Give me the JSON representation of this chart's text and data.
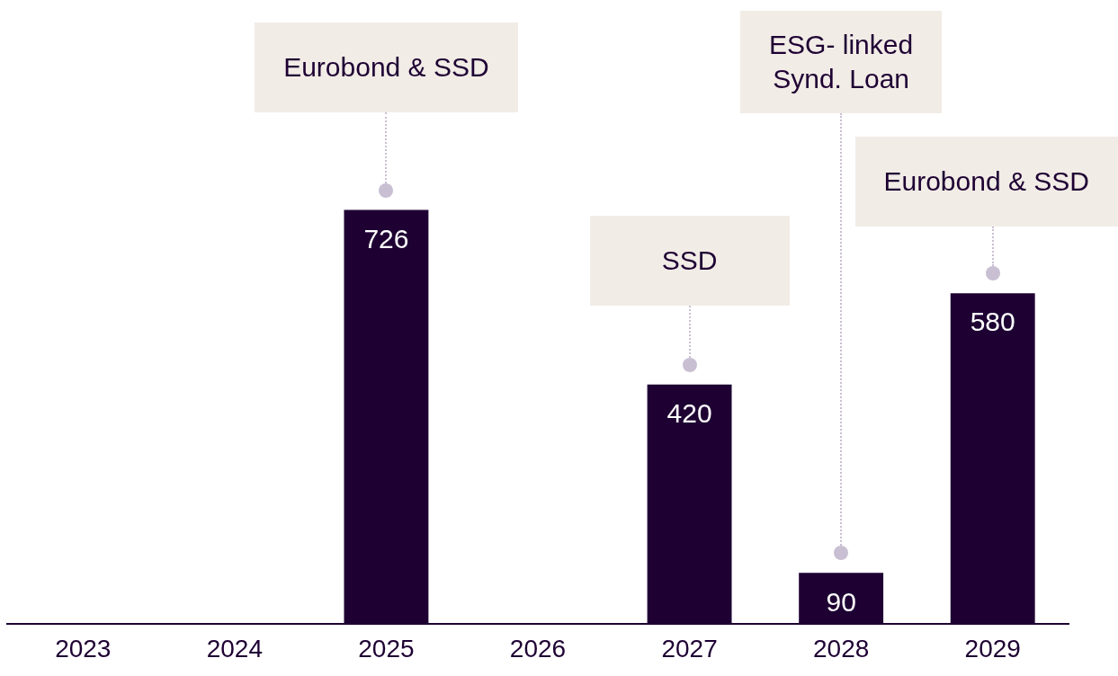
{
  "chart_data": {
    "type": "bar",
    "categories": [
      "2023",
      "2024",
      "2025",
      "2026",
      "2027",
      "2028",
      "2029"
    ],
    "values": [
      null,
      null,
      726,
      null,
      420,
      90,
      580
    ],
    "color": "#1e0033",
    "tick_labels": "x",
    "data_labels": true,
    "annotations": [
      "Eurobond & SSD",
      "SSD",
      "ESG- linked Synd. Loan",
      "Eurobond & SSD"
    ]
  }
}
